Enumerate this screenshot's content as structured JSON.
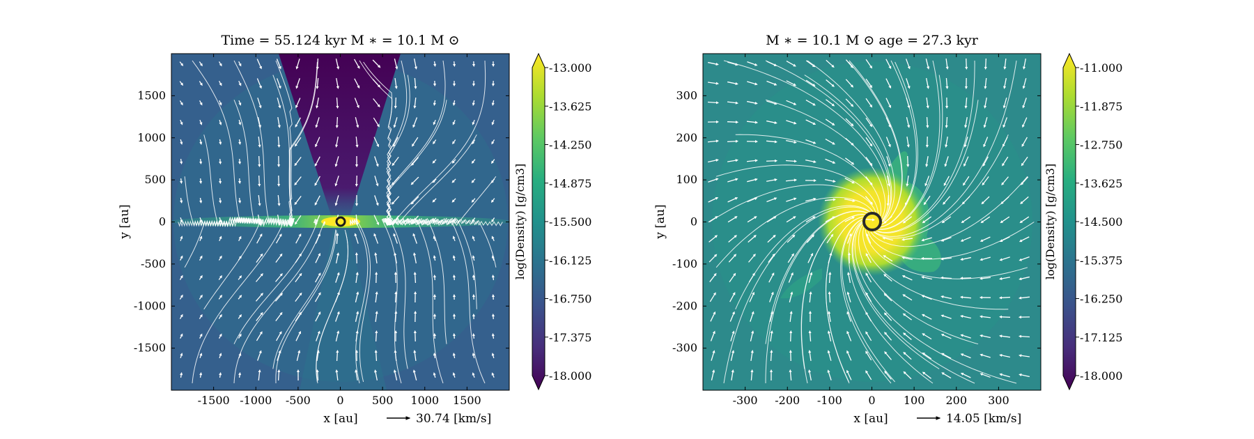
{
  "chart_data": [
    {
      "type": "heatmap",
      "title": "Time = 55.124 kyr    M$_*$ = 10.1 M$_\\odot$",
      "title_text": "Time = 55.124 kyr    M ∗ = 10.1 M ⊙",
      "xlabel": "x [au]",
      "ylabel": "y [au]",
      "xlim": [
        -2000,
        2000
      ],
      "ylim": [
        -2000,
        2000
      ],
      "xticks": [
        -1500,
        -1000,
        -500,
        0,
        500,
        1000,
        1500
      ],
      "yticks": [
        -1500,
        -1000,
        -500,
        0,
        500,
        1000,
        1500
      ],
      "xtick_labels": [
        "-1500",
        "-1000",
        "-500",
        "0",
        "500",
        "1000",
        "1500"
      ],
      "ytick_labels": [
        "-1500",
        "-1000",
        "-500",
        "0",
        "500",
        "1000",
        "1500"
      ],
      "quiver_key": "30.74 [km/s]",
      "colorbar": {
        "label": "log(Density) [g/cm3]",
        "range": [
          -18.0,
          -13.0
        ],
        "ticks": [
          "-13.000",
          "-13.625",
          "-14.250",
          "-14.875",
          "-15.500",
          "-16.125",
          "-16.750",
          "-17.375",
          "-18.000"
        ],
        "colormap": "viridis",
        "extend": "both"
      },
      "features": {
        "star_position": [
          0,
          0
        ],
        "disk": "thin dense horizontal disk along y = 0, log density ≈ -14.5 to -13",
        "outflow_cavity": "low density cone above the star, log density ≈ -18 to -17.5",
        "background": "log density ≈ -17 to -16",
        "streamlines": "white velocity streamlines with arrows; vortices near (-1200, 1000) and (-900, -800)"
      }
    },
    {
      "type": "heatmap",
      "title": "M$_*$ = 10.1 M$_\\odot$        age = 27.3 kyr",
      "title_text": "M ∗ = 10.1 M ⊙          age = 27.3 kyr",
      "xlabel": "x [au]",
      "ylabel": "y [au]",
      "xlim": [
        -400,
        400
      ],
      "ylim": [
        -400,
        400
      ],
      "xticks": [
        -300,
        -200,
        -100,
        0,
        100,
        200,
        300
      ],
      "yticks": [
        -300,
        -200,
        -100,
        0,
        100,
        200,
        300
      ],
      "xtick_labels": [
        "-300",
        "-200",
        "-100",
        "0",
        "100",
        "200",
        "300"
      ],
      "ytick_labels": [
        "-300",
        "-200",
        "-100",
        "0",
        "100",
        "200",
        "300"
      ],
      "quiver_key": "14.05 [km/s]",
      "colorbar": {
        "label": "log(Density) [g/cm3]",
        "range": [
          -18.0,
          -11.0
        ],
        "ticks": [
          "-11.000",
          "-11.875",
          "-12.750",
          "-13.625",
          "-14.500",
          "-15.375",
          "-16.250",
          "-17.125",
          "-18.000"
        ],
        "colormap": "viridis",
        "extend": "both"
      },
      "features": {
        "star_position": [
          0,
          0
        ],
        "core": "dense core of radius ≈ 70 au, log density ≈ -11 to -12",
        "background": "log density ≈ -15 to -14.5",
        "streamlines": "white velocity streamlines spiraling inward toward the star"
      }
    }
  ]
}
